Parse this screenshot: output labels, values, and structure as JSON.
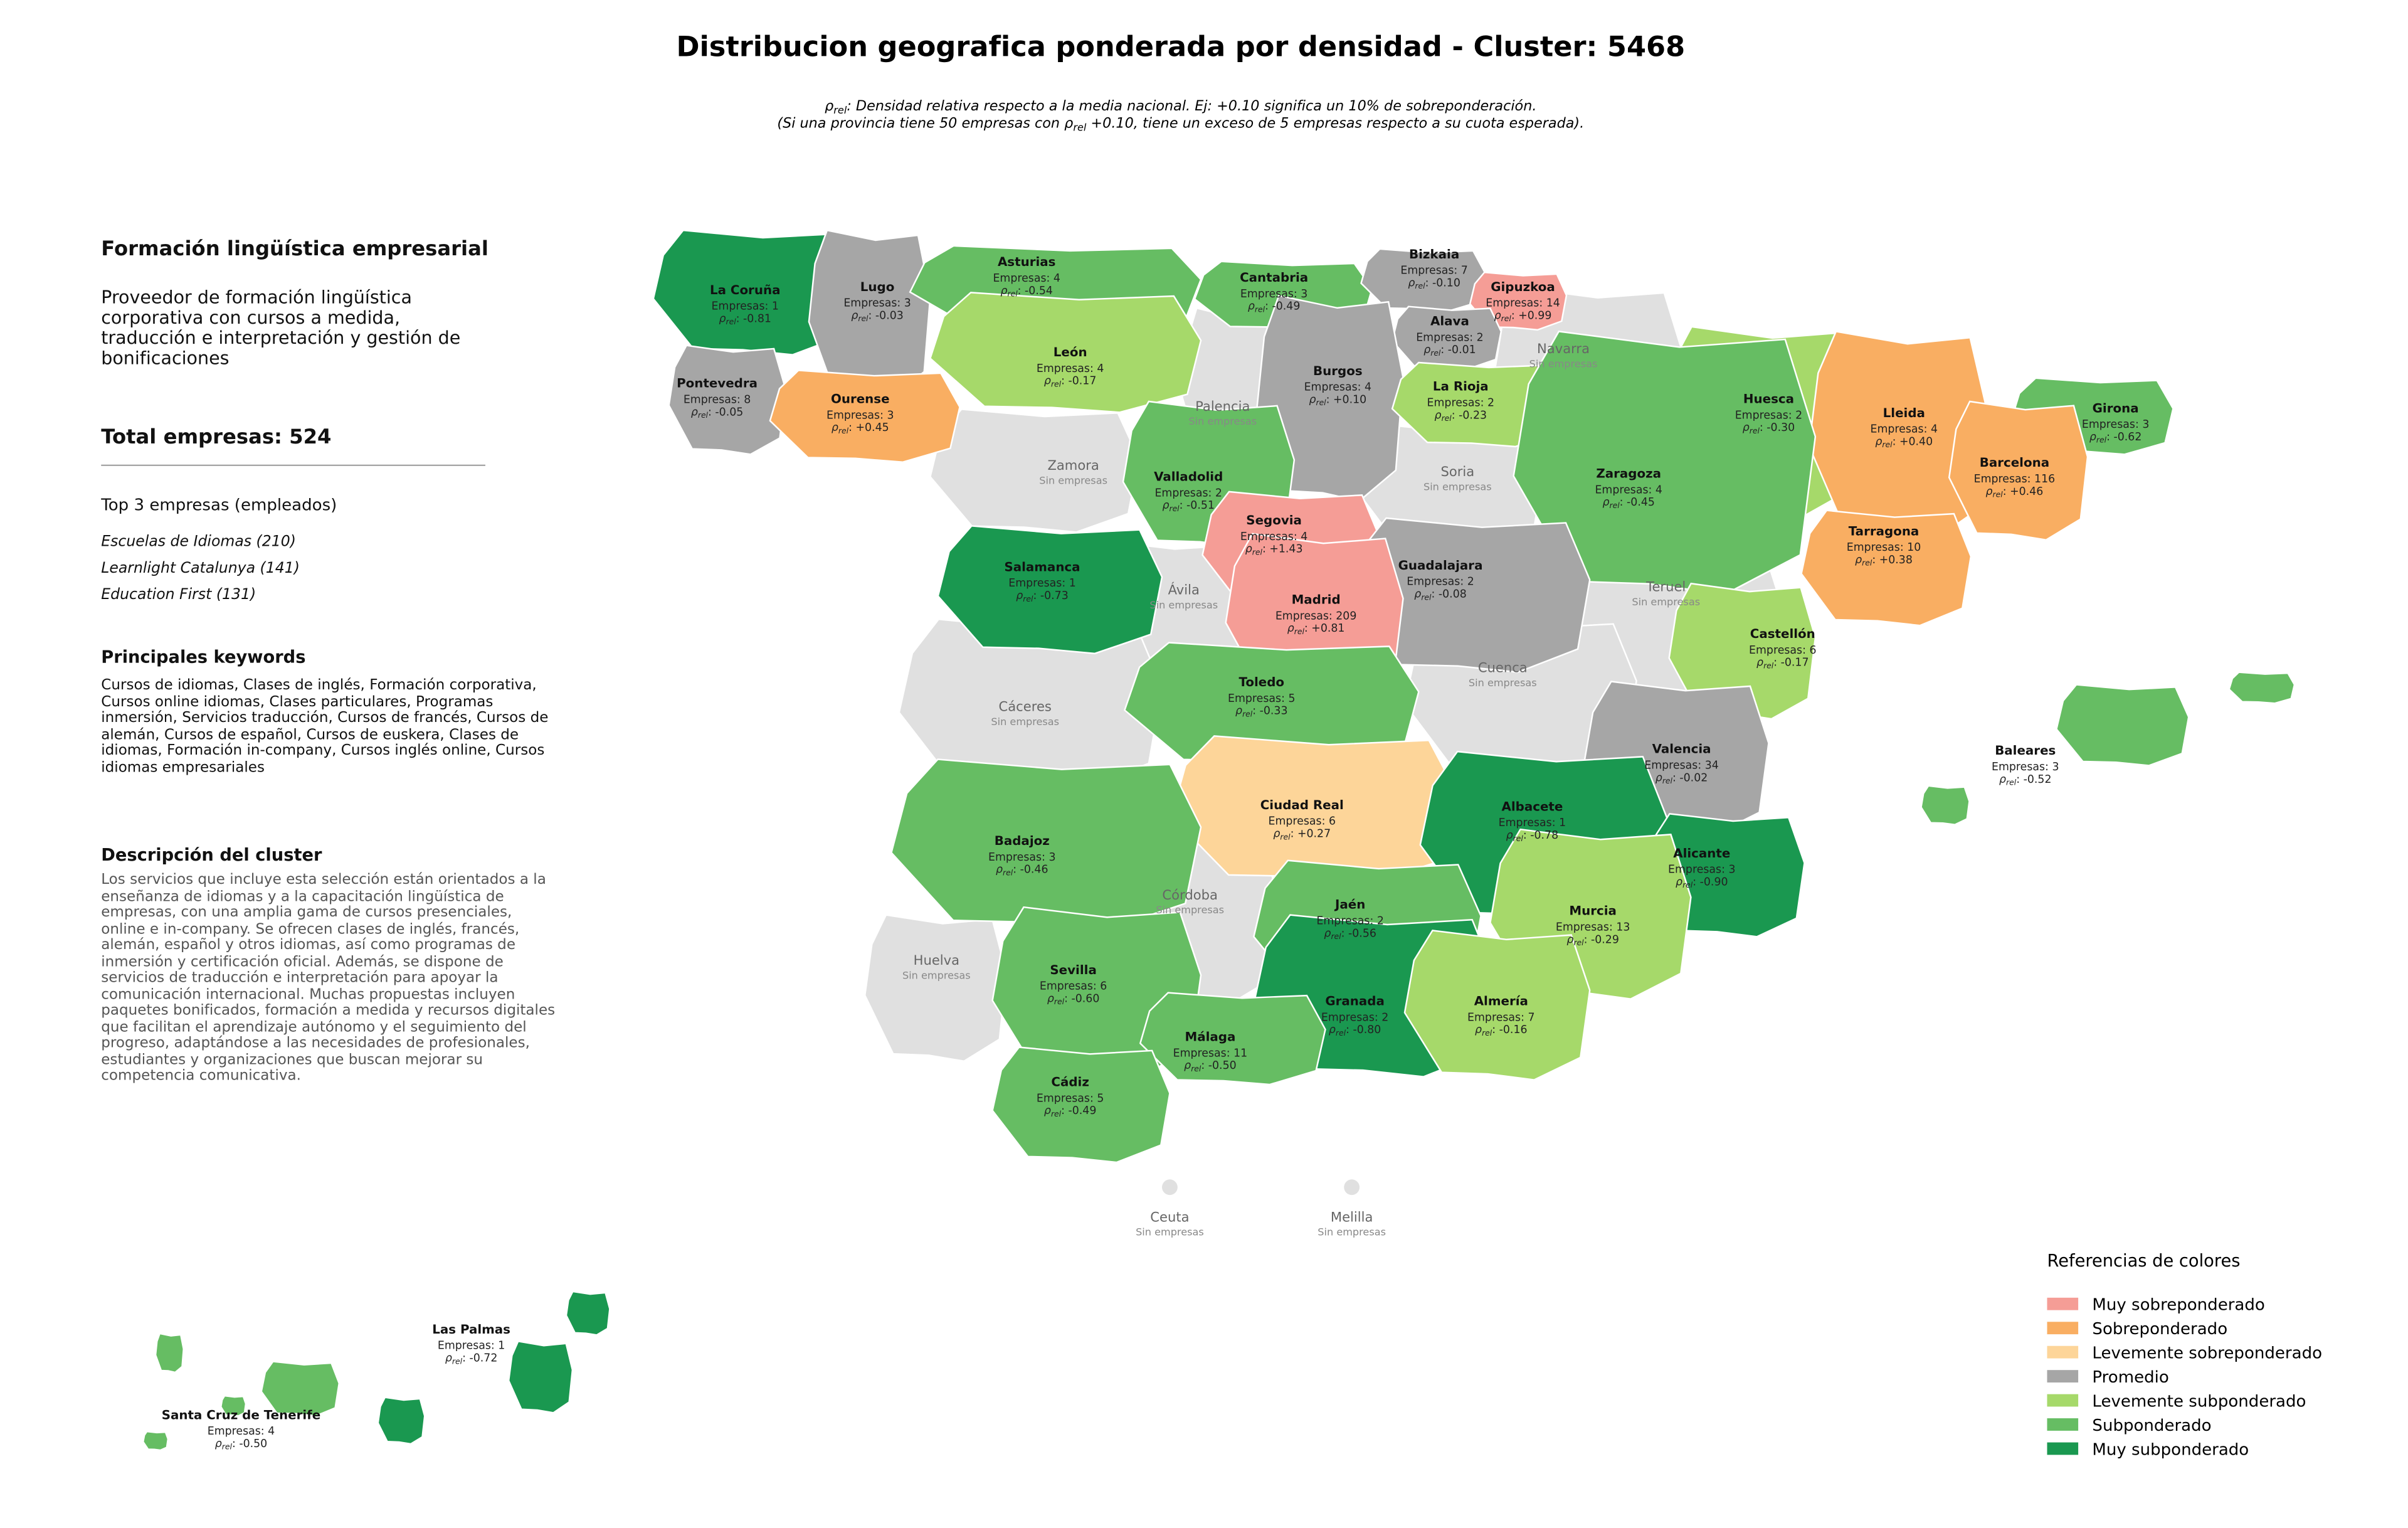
{
  "title": "Distribucion geografica ponderada por densidad - Cluster: 5468",
  "subtitle": {
    "line1": {
      "symbol": "ρ",
      "subscript": "rel",
      "text": ": Densidad relativa respecto a la media nacional. Ej: +0.10 significa un 10% de sobreponderación."
    },
    "line2": {
      "before": "(Si una provincia tiene 50 empresas con ",
      "symbol": "ρ",
      "subscript": "rel",
      "after": " +0.10, tiene un exceso de 5 empresas respecto a su cuota esperada)."
    }
  },
  "sidebar": {
    "name": "Formación lingüística empresarial",
    "description": "Proveedor de formación lingüística corporativa con cursos a medida, traducción e interpretación y gestión de bonificaciones",
    "total": "Total empresas: 524",
    "top_title": "Top 3 empresas (empleados)",
    "top": [
      "Escuelas de Idiomas (210)",
      "Learnlight Catalunya (141)",
      "Education First (131)"
    ],
    "keywords_title": "Principales keywords",
    "keywords": "Cursos de idiomas, Clases de inglés, Formación corporativa, Cursos online idiomas, Clases particulares, Programas inmersión, Servicios traducción, Cursos de francés, Cursos de alemán, Cursos de español, Cursos de euskera, Clases de idiomas, Formación in-company, Cursos inglés online, Cursos idiomas empresariales",
    "cluster_title": "Descripción del cluster",
    "cluster_text": "Los servicios que incluye esta selección están orientados a la enseñanza de idiomas y a la capacitación lingüística de empresas, con una amplia gama de cursos presenciales, online e in-company. Se ofrecen clases de inglés, francés, alemán, español y otros idiomas, así como programas de inmersión y certificación oficial. Además, se dispone de servicios de traducción e interpretación para apoyar la comunicación internacional. Muchas propuestas incluyen paquetes bonificados, formación a medida y recursos digitales que facilitan el aprendizaje autónomo y el seguimiento del progreso, adaptándose a las necesidades de profesionales, estudiantes y organizaciones que buscan mejorar su competencia comunicativa."
  },
  "density_label": {
    "symbol": "ρ",
    "subscript": "rel",
    "separator": ": "
  },
  "no_data_label": "Sin empresas",
  "no_data_color": "#e0e0e0",
  "legend": {
    "title": "Referencias de colores",
    "items": [
      {
        "label": "Muy sobreponderado",
        "color": "#f59d96"
      },
      {
        "label": "Sobreponderado",
        "color": "#f9ae62"
      },
      {
        "label": "Levemente sobreponderado",
        "color": "#fdd599"
      },
      {
        "label": "Promedio",
        "color": "#a6a6a6"
      },
      {
        "label": "Levemente subponderado",
        "color": "#a6d96a"
      },
      {
        "label": "Subponderado",
        "color": "#66bd63"
      },
      {
        "label": "Muy subponderado",
        "color": "#1a9850"
      }
    ]
  },
  "provinces": [
    {
      "name": "La Coruña",
      "companies": "Empresas: 1",
      "density": "-0.81",
      "category": 6
    },
    {
      "name": "Lugo",
      "companies": "Empresas: 3",
      "density": "-0.03",
      "category": 3
    },
    {
      "name": "Asturias",
      "companies": "Empresas: 4",
      "density": "-0.54",
      "category": 5
    },
    {
      "name": "Cantabria",
      "companies": "Empresas: 3",
      "density": "-0.49",
      "category": 5
    },
    {
      "name": "Bizkaia",
      "companies": "Empresas: 7",
      "density": "-0.10",
      "category": 3
    },
    {
      "name": "Gipuzkoa",
      "companies": "Empresas: 14",
      "density": "+0.99",
      "category": 0
    },
    {
      "name": "Alava",
      "companies": "Empresas: 2",
      "density": "-0.01",
      "category": 3
    },
    {
      "name": "Navarra"
    },
    {
      "name": "Pontevedra",
      "companies": "Empresas: 8",
      "density": "-0.05",
      "category": 3
    },
    {
      "name": "Ourense",
      "companies": "Empresas: 3",
      "density": "+0.45",
      "category": 1
    },
    {
      "name": "León",
      "companies": "Empresas: 4",
      "density": "-0.17",
      "category": 4
    },
    {
      "name": "Palencia"
    },
    {
      "name": "Burgos",
      "companies": "Empresas: 4",
      "density": "+0.10",
      "category": 3
    },
    {
      "name": "La Rioja",
      "companies": "Empresas: 2",
      "density": "-0.23",
      "category": 4
    },
    {
      "name": "Huesca",
      "companies": "Empresas: 2",
      "density": "-0.30",
      "category": 4
    },
    {
      "name": "Lleida",
      "companies": "Empresas: 4",
      "density": "+0.40",
      "category": 1
    },
    {
      "name": "Girona",
      "companies": "Empresas: 3",
      "density": "-0.62",
      "category": 5
    },
    {
      "name": "Barcelona",
      "companies": "Empresas: 116",
      "density": "+0.46",
      "category": 1
    },
    {
      "name": "Zamora"
    },
    {
      "name": "Valladolid",
      "companies": "Empresas: 2",
      "density": "-0.51",
      "category": 5
    },
    {
      "name": "Soria"
    },
    {
      "name": "Zaragoza",
      "companies": "Empresas: 4",
      "density": "-0.45",
      "category": 5
    },
    {
      "name": "Segovia",
      "companies": "Empresas: 4",
      "density": "+1.43",
      "category": 0
    },
    {
      "name": "Tarragona",
      "companies": "Empresas: 10",
      "density": "+0.38",
      "category": 1
    },
    {
      "name": "Salamanca",
      "companies": "Empresas: 1",
      "density": "-0.73",
      "category": 6
    },
    {
      "name": "Guadalajara",
      "companies": "Empresas: 2",
      "density": "-0.08",
      "category": 3
    },
    {
      "name": "Ávila"
    },
    {
      "name": "Madrid",
      "companies": "Empresas: 209",
      "density": "+0.81",
      "category": 0
    },
    {
      "name": "Teruel"
    },
    {
      "name": "Castellón",
      "companies": "Empresas: 6",
      "density": "-0.17",
      "category": 4
    },
    {
      "name": "Cáceres"
    },
    {
      "name": "Toledo",
      "companies": "Empresas: 5",
      "density": "-0.33",
      "category": 5
    },
    {
      "name": "Cuenca"
    },
    {
      "name": "Valencia",
      "companies": "Empresas: 34",
      "density": "-0.02",
      "category": 3
    },
    {
      "name": "Ciudad Real",
      "companies": "Empresas: 6",
      "density": "+0.27",
      "category": 2
    },
    {
      "name": "Badajoz",
      "companies": "Empresas: 3",
      "density": "-0.46",
      "category": 5
    },
    {
      "name": "Albacete",
      "companies": "Empresas: 1",
      "density": "-0.78",
      "category": 6
    },
    {
      "name": "Alicante",
      "companies": "Empresas: 3",
      "density": "-0.90",
      "category": 6
    },
    {
      "name": "Córdoba"
    },
    {
      "name": "Jaén",
      "companies": "Empresas: 2",
      "density": "-0.56",
      "category": 5
    },
    {
      "name": "Murcia",
      "companies": "Empresas: 13",
      "density": "-0.29",
      "category": 4
    },
    {
      "name": "Huelva"
    },
    {
      "name": "Sevilla",
      "companies": "Empresas: 6",
      "density": "-0.60",
      "category": 5
    },
    {
      "name": "Granada",
      "companies": "Empresas: 2",
      "density": "-0.80",
      "category": 6
    },
    {
      "name": "Almería",
      "companies": "Empresas: 7",
      "density": "-0.16",
      "category": 4
    },
    {
      "name": "Málaga",
      "companies": "Empresas: 11",
      "density": "-0.50",
      "category": 5
    },
    {
      "name": "Cádiz",
      "companies": "Empresas: 5",
      "density": "-0.49",
      "category": 5
    },
    {
      "name": "Baleares",
      "companies": "Empresas: 3",
      "density": "-0.52",
      "category": 5
    },
    {
      "name": "Las Palmas",
      "companies": "Empresas: 1",
      "density": "-0.72",
      "category": 6
    },
    {
      "name": "Santa Cruz de Tenerife",
      "companies": "Empresas: 4",
      "density": "-0.50",
      "category": 5
    },
    {
      "name": "Ceuta"
    },
    {
      "name": "Melilla"
    }
  ]
}
